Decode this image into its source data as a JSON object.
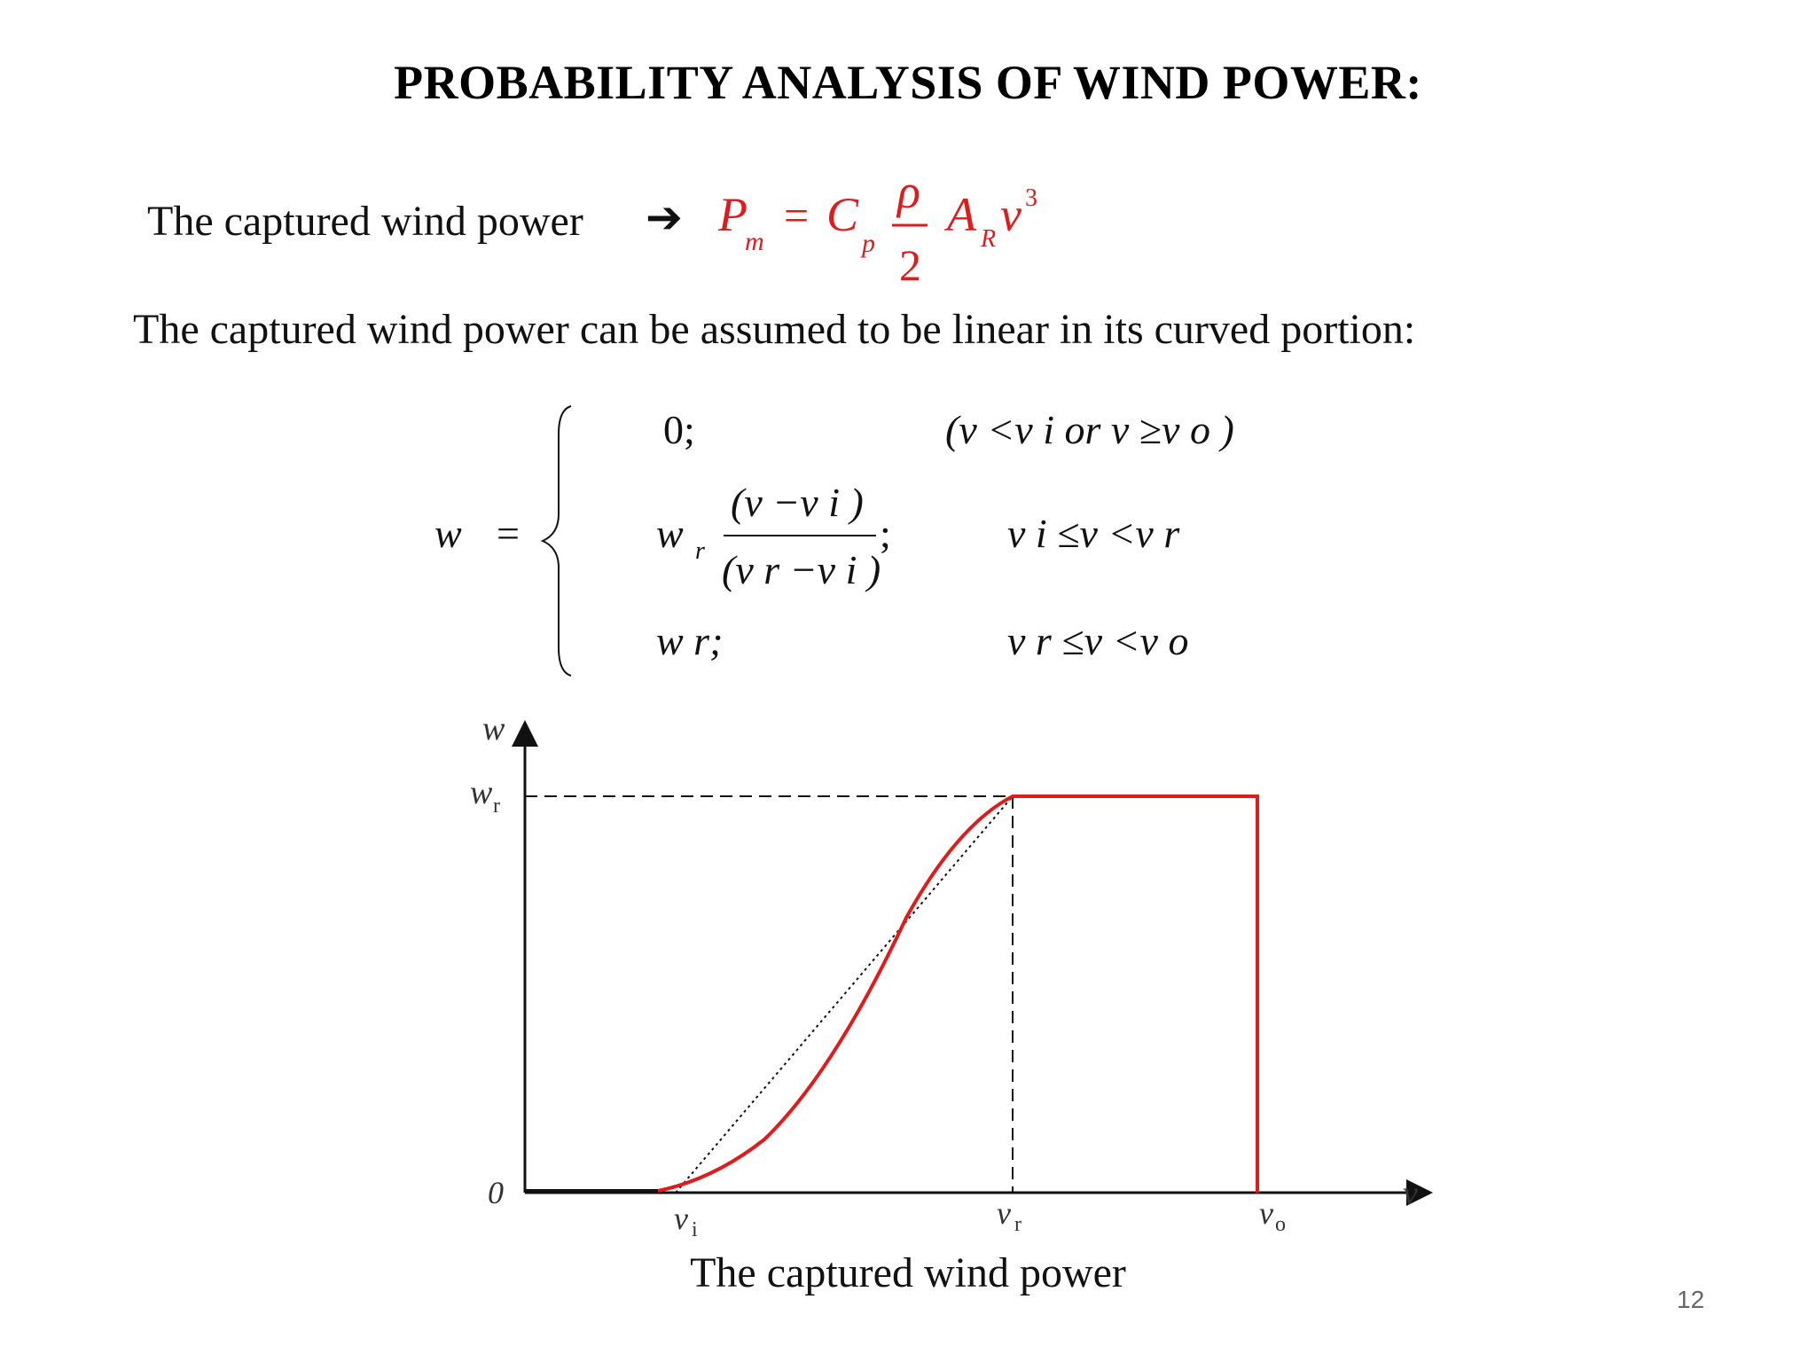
{
  "title": "PROBABILITY ANALYSIS OF WIND POWER:",
  "intro_label": "The captured wind power",
  "arrow_icon": "right-arrow-icon",
  "formula": {
    "lhs": "P",
    "lhs_sub": "m",
    "eq": "=",
    "coef": "C",
    "coef_sub": "p",
    "frac_num": "ρ",
    "frac_den": "2",
    "area": "A",
    "area_sub": "R",
    "vel": "v",
    "vel_exp": "3",
    "color": "#e01b1b"
  },
  "statement": "The captured wind power can be assumed to be linear in its curved portion:",
  "piecewise": {
    "lhs": "w",
    "eq": "=",
    "case1_value": "0;",
    "case1_condition": "(v <v i or v ≥v o )",
    "case2_w": "w",
    "case2_w_sub": "r",
    "case2_num": "(v −v i )",
    "case2_den": "(v r −v i )",
    "case2_semicolon": ";",
    "case2_condition": "v i ≤v <v r",
    "case3_value": "w r;",
    "case3_condition": "v r ≤v <v o"
  },
  "diagram": {
    "y_axis_label": "w",
    "x_axis_label": "v",
    "origin_label": "0",
    "wr_label": "w",
    "wr_sub": "r",
    "vi_label": "v",
    "vi_sub": "i",
    "vr_label": "v",
    "vr_sub": "r",
    "vo_label": "v",
    "vo_sub": "o",
    "curve_color": "#e01b1b"
  },
  "caption": "The captured wind power",
  "page_number": "12"
}
